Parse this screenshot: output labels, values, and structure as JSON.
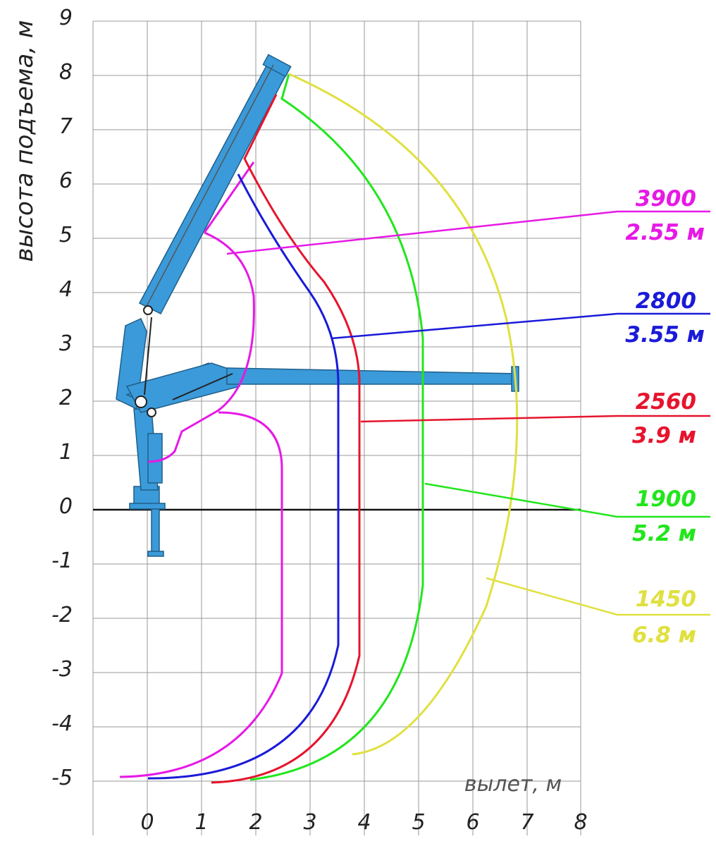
{
  "axes": {
    "y_title": "высота подъема, м",
    "x_title": "вылет, м",
    "x_ticks": [
      "0",
      "1",
      "2",
      "3",
      "4",
      "5",
      "6",
      "7",
      "8"
    ],
    "y_ticks": [
      "9",
      "8",
      "7",
      "6",
      "5",
      "4",
      "3",
      "2",
      "1",
      "0",
      "-1",
      "-2",
      "-3",
      "-4",
      "-5"
    ]
  },
  "zones": [
    {
      "load": "3900",
      "reach": "2.55 м",
      "color": "#e619e6"
    },
    {
      "load": "2800",
      "reach": "3.55 м",
      "color": "#1a1ad9"
    },
    {
      "load": "2560",
      "reach": "3.9 м",
      "color": "#e6142d"
    },
    {
      "load": "1900",
      "reach": "5.2 м",
      "color": "#22e61c"
    },
    {
      "load": "1450",
      "reach": "6.8 м",
      "color": "#e0e040"
    }
  ],
  "crane_color": "#3b9ad9"
}
